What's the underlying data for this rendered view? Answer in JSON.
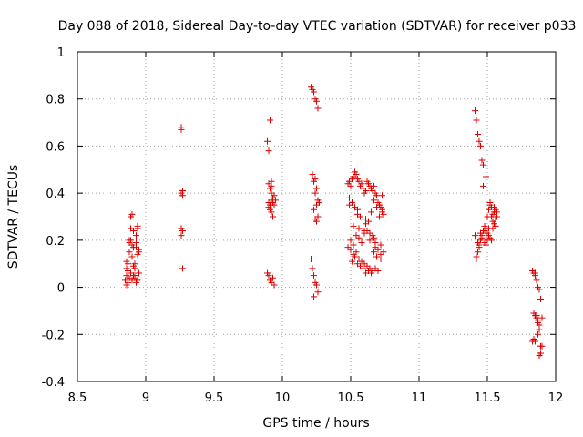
{
  "chart_data": {
    "type": "scatter",
    "title": "Day 088 of 2018, Sidereal Day-to-day VTEC variation (SDTVAR) for receiver p033",
    "xlabel": "GPS time / hours",
    "ylabel": "SDTVAR / TECUs",
    "xlim": [
      8.5,
      12
    ],
    "ylim": [
      -0.4,
      1
    ],
    "grid": true,
    "marker": "+",
    "xticks": [
      {
        "value": 8.5,
        "label": "8.5"
      },
      {
        "value": 9,
        "label": "9"
      },
      {
        "value": 9.5,
        "label": "9.5"
      },
      {
        "value": 10,
        "label": "10"
      },
      {
        "value": 10.5,
        "label": "10.5"
      },
      {
        "value": 11,
        "label": "11"
      },
      {
        "value": 11.5,
        "label": "11.5"
      },
      {
        "value": 12,
        "label": "12"
      }
    ],
    "yticks": [
      {
        "value": -0.4,
        "label": "-0.4"
      },
      {
        "value": -0.2,
        "label": "-0.2"
      },
      {
        "value": 0,
        "label": "0"
      },
      {
        "value": 0.2,
        "label": "0.2"
      },
      {
        "value": 0.4,
        "label": "0.4"
      },
      {
        "value": 0.6,
        "label": "0.6"
      },
      {
        "value": 0.8,
        "label": "0.8"
      },
      {
        "value": 1,
        "label": "1"
      }
    ],
    "series": [
      {
        "name": "SDTVAR",
        "color": "#e00000",
        "x": [
          8.85,
          8.86,
          8.86,
          8.87,
          8.87,
          8.88,
          8.88,
          8.89,
          8.89,
          8.9,
          8.9,
          8.91,
          8.91,
          8.92,
          8.92,
          8.93,
          8.93,
          8.94,
          8.94,
          8.95,
          8.95,
          8.86,
          8.87,
          8.88,
          8.89,
          8.9,
          8.91,
          8.92,
          8.93,
          8.94,
          8.86,
          8.88,
          8.9,
          8.92,
          8.94,
          8.87,
          8.89,
          8.91,
          8.93,
          8.95,
          9.26,
          9.26,
          9.27,
          9.27,
          9.26,
          9.27,
          9.26,
          9.27,
          9.26,
          9.89,
          9.9,
          9.91,
          9.92,
          9.9,
          9.91,
          9.92,
          9.93,
          9.94,
          9.9,
          9.91,
          9.92,
          9.93,
          9.94,
          9.89,
          9.9,
          9.91,
          9.92,
          9.93,
          9.94,
          9.91,
          9.92,
          9.93,
          9.9,
          9.95,
          9.92,
          10.21,
          10.22,
          10.23,
          10.24,
          10.25,
          10.26,
          10.22,
          10.23,
          10.24,
          10.25,
          10.26,
          10.27,
          10.23,
          10.24,
          10.25,
          10.21,
          10.22,
          10.23,
          10.24,
          10.25,
          10.26,
          10.23,
          10.24,
          10.25,
          10.26,
          10.48,
          10.49,
          10.5,
          10.51,
          10.52,
          10.53,
          10.54,
          10.55,
          10.56,
          10.57,
          10.58,
          10.59,
          10.6,
          10.61,
          10.62,
          10.63,
          10.64,
          10.65,
          10.66,
          10.67,
          10.68,
          10.69,
          10.7,
          10.71,
          10.72,
          10.73,
          10.74,
          10.49,
          10.51,
          10.53,
          10.55,
          10.57,
          10.59,
          10.61,
          10.63,
          10.65,
          10.67,
          10.69,
          10.71,
          10.73,
          10.5,
          10.52,
          10.54,
          10.56,
          10.58,
          10.6,
          10.62,
          10.64,
          10.66,
          10.68,
          10.7,
          10.72,
          10.48,
          10.5,
          10.52,
          10.54,
          10.56,
          10.58,
          10.6,
          10.62,
          10.64,
          10.66,
          10.68,
          10.7,
          10.72,
          10.74,
          10.51,
          10.53,
          10.55,
          10.57,
          10.59,
          10.61,
          10.63,
          10.65,
          10.67,
          10.69,
          10.52,
          10.56,
          10.6,
          10.64,
          10.68,
          10.72,
          10.49,
          10.55,
          10.61,
          10.67,
          10.73,
          11.41,
          11.42,
          11.43,
          11.44,
          11.45,
          11.46,
          11.47,
          11.42,
          11.43,
          11.44,
          11.45,
          11.46,
          11.47,
          11.48,
          11.49,
          11.5,
          11.51,
          11.52,
          11.53,
          11.54,
          11.55,
          11.56,
          11.57,
          11.48,
          11.49,
          11.5,
          11.51,
          11.52,
          11.53,
          11.54,
          11.55,
          11.56,
          11.42,
          11.44,
          11.46,
          11.48,
          11.5,
          11.52,
          11.54,
          11.56,
          11.41,
          11.43,
          11.45,
          11.47,
          11.49,
          11.51,
          11.53,
          11.55,
          11.57,
          11.83,
          11.84,
          11.85,
          11.86,
          11.87,
          11.88,
          11.89,
          11.9,
          11.84,
          11.85,
          11.86,
          11.87,
          11.88,
          11.89,
          11.84,
          11.85,
          11.86,
          11.87,
          11.88,
          11.89,
          11.9,
          11.86,
          11.87,
          11.88,
          11.83,
          11.85
        ],
        "y": [
          0.03,
          0.05,
          0.08,
          0.1,
          0.12,
          0.15,
          0.2,
          0.25,
          0.3,
          0.31,
          0.18,
          0.17,
          0.09,
          0.08,
          0.04,
          0.02,
          0.22,
          0.25,
          0.26,
          0.16,
          0.15,
          0.01,
          0.02,
          0.04,
          0.06,
          0.03,
          0.05,
          0.1,
          0.19,
          0.14,
          0.11,
          0.19,
          0.13,
          0.05,
          0.03,
          0.07,
          0.2,
          0.24,
          0.17,
          0.06,
          0.68,
          0.67,
          0.41,
          0.39,
          0.25,
          0.24,
          0.22,
          0.08,
          0.4,
          0.62,
          0.58,
          0.71,
          0.45,
          0.44,
          0.42,
          0.4,
          0.38,
          0.35,
          0.34,
          0.33,
          0.37,
          0.36,
          0.39,
          0.06,
          0.05,
          0.03,
          0.02,
          0.04,
          0.01,
          0.35,
          0.32,
          0.3,
          0.36,
          0.37,
          0.43,
          0.85,
          0.84,
          0.83,
          0.8,
          0.79,
          0.76,
          0.48,
          0.45,
          0.46,
          0.42,
          0.37,
          0.36,
          0.33,
          0.29,
          0.28,
          0.12,
          0.08,
          0.05,
          0.02,
          0.01,
          -0.02,
          -0.04,
          0.4,
          0.35,
          0.3,
          0.44,
          0.45,
          0.43,
          0.46,
          0.47,
          0.49,
          0.48,
          0.46,
          0.45,
          0.43,
          0.44,
          0.42,
          0.4,
          0.41,
          0.45,
          0.44,
          0.43,
          0.42,
          0.41,
          0.43,
          0.4,
          0.39,
          0.36,
          0.35,
          0.34,
          0.32,
          0.31,
          0.38,
          0.36,
          0.34,
          0.33,
          0.3,
          0.29,
          0.27,
          0.28,
          0.32,
          0.37,
          0.34,
          0.3,
          0.33,
          0.2,
          0.18,
          0.22,
          0.21,
          0.19,
          0.23,
          0.24,
          0.2,
          0.22,
          0.17,
          0.16,
          0.18,
          0.17,
          0.16,
          0.14,
          0.15,
          0.12,
          0.11,
          0.1,
          0.09,
          0.08,
          0.07,
          0.08,
          0.07,
          0.14,
          0.15,
          0.11,
          0.13,
          0.1,
          0.09,
          0.08,
          0.06,
          0.07,
          0.06,
          0.15,
          0.13,
          0.26,
          0.25,
          0.24,
          0.23,
          0.19,
          0.12,
          0.35,
          0.31,
          0.29,
          0.21,
          0.39,
          0.75,
          0.71,
          0.65,
          0.62,
          0.6,
          0.54,
          0.52,
          0.13,
          0.15,
          0.17,
          0.2,
          0.22,
          0.24,
          0.26,
          0.25,
          0.23,
          0.22,
          0.21,
          0.2,
          0.25,
          0.27,
          0.29,
          0.3,
          0.19,
          0.18,
          0.2,
          0.33,
          0.36,
          0.34,
          0.31,
          0.32,
          0.33,
          0.12,
          0.18,
          0.21,
          0.24,
          0.3,
          0.35,
          0.28,
          0.26,
          0.22,
          0.19,
          0.23,
          0.43,
          0.47,
          0.25,
          0.3,
          0.34,
          0.32,
          0.07,
          0.06,
          0.05,
          0.03,
          0.0,
          -0.01,
          -0.05,
          -0.13,
          -0.11,
          -0.12,
          -0.13,
          -0.15,
          -0.18,
          -0.25,
          -0.22,
          -0.23,
          -0.12,
          -0.14,
          -0.16,
          -0.28,
          -0.25,
          -0.12,
          -0.2,
          -0.29,
          -0.23,
          0.06
        ]
      }
    ]
  }
}
